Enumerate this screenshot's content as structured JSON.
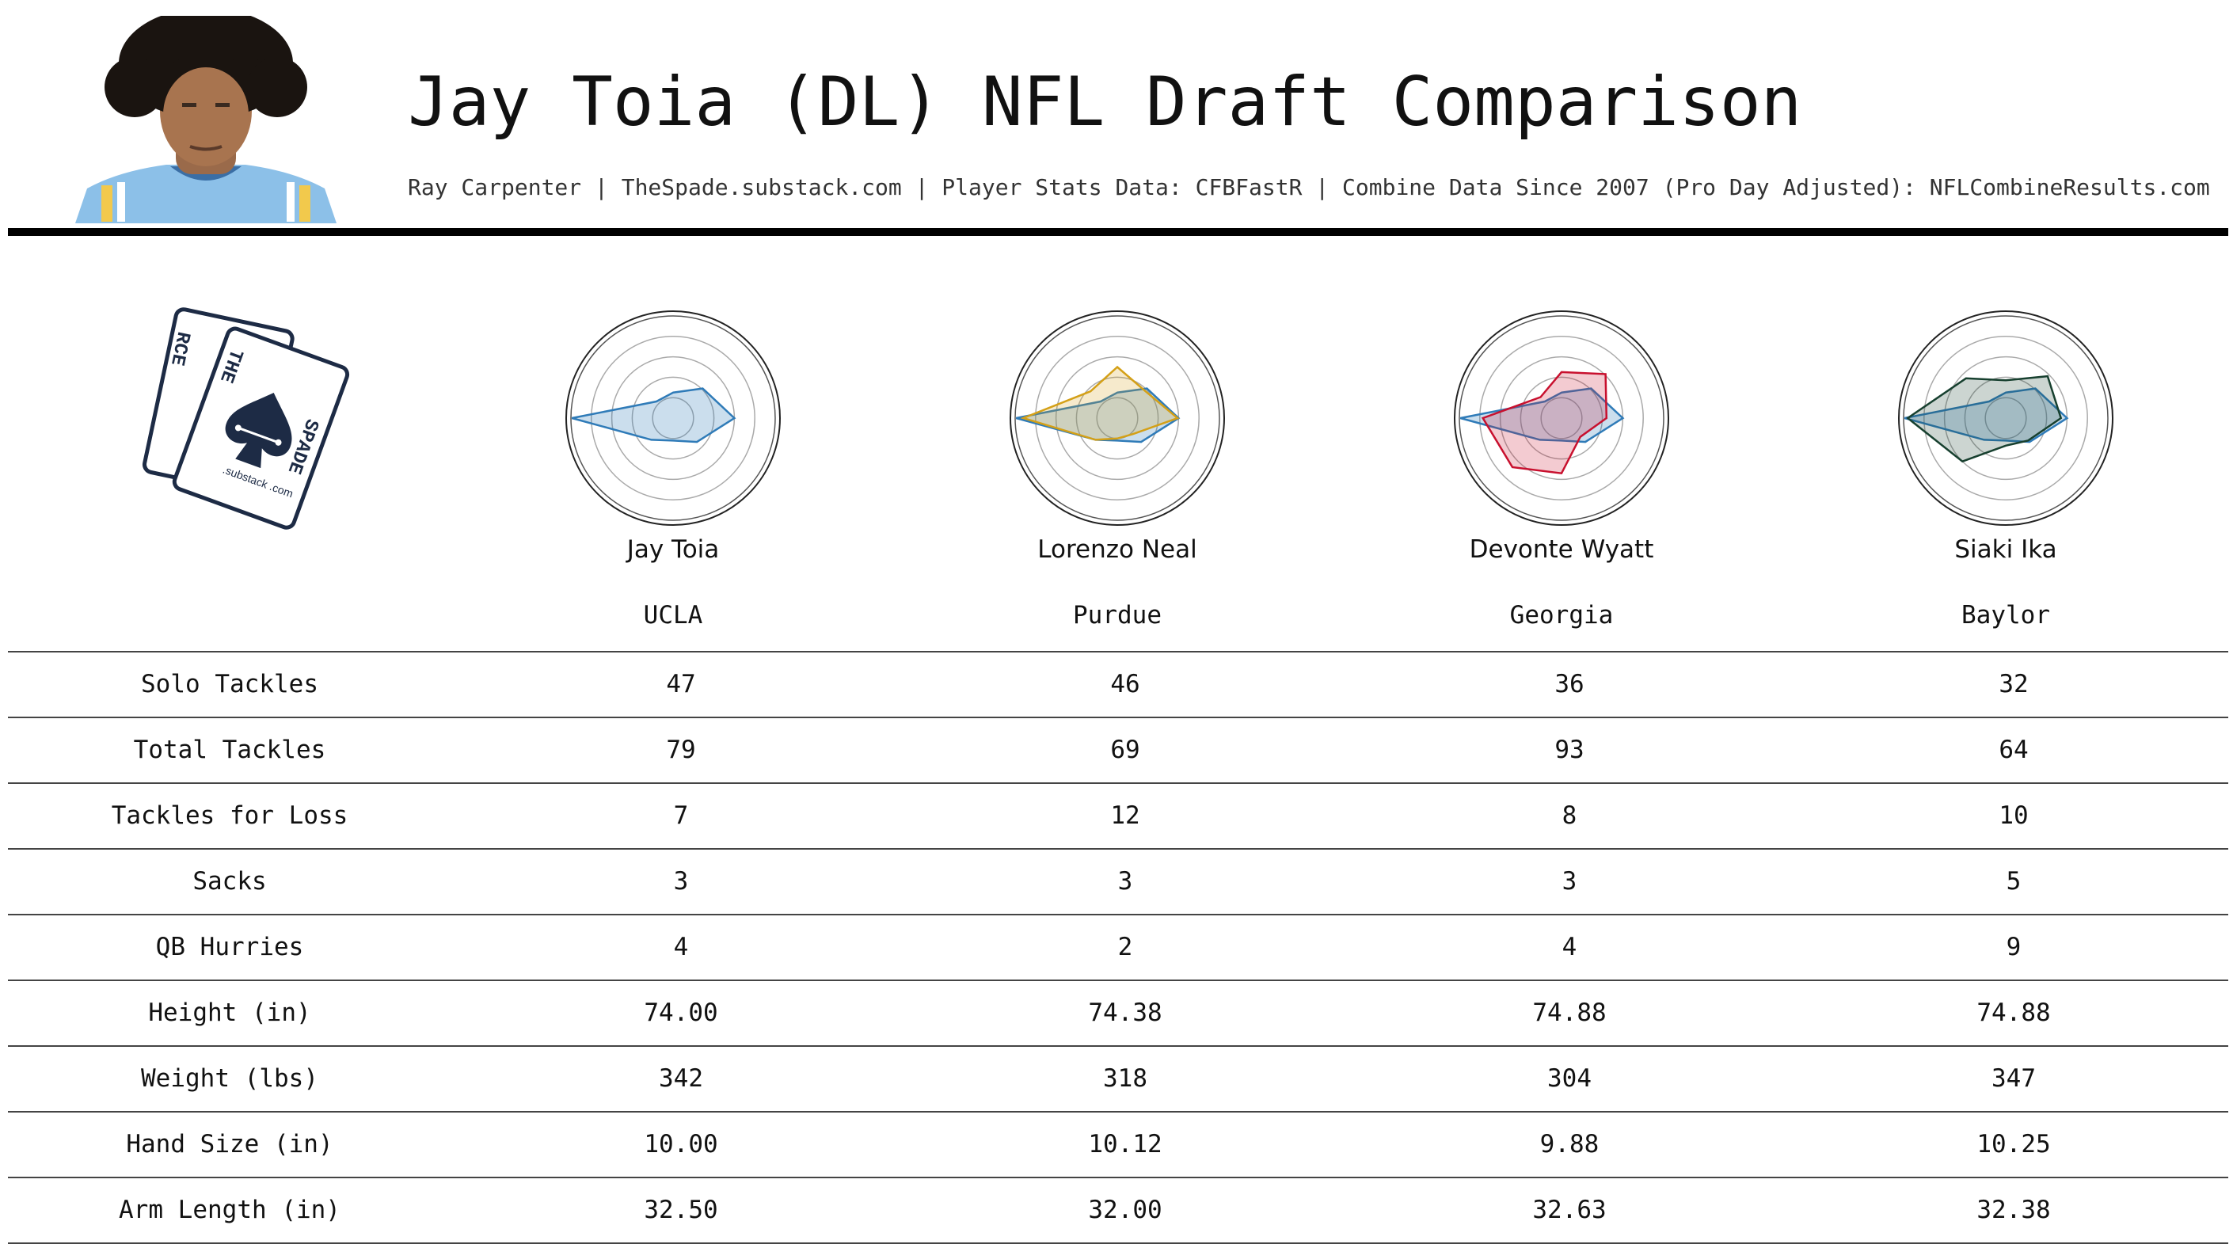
{
  "header": {
    "title": "Jay Toia (DL) NFL Draft Comparison",
    "subtitle": "Ray Carpenter | TheSpade.substack.com | Player Stats Data: CFBFastR | Combine Data Since 2007 (Pro Day Adjusted): NFLCombineResults.com"
  },
  "logo": {
    "card_back_letters": "RCE",
    "card_front_top": "THE",
    "card_front_side": "SPADE",
    "card_text": ".substack .com",
    "color": "#1d2b45"
  },
  "players": [
    {
      "name": "Jay Toia",
      "school": "UCLA"
    },
    {
      "name": "Lorenzo Neal",
      "school": "Purdue"
    },
    {
      "name": "Devonte Wyatt",
      "school": "Georgia"
    },
    {
      "name": "Siaki Ika",
      "school": "Baylor"
    }
  ],
  "colors": {
    "primary": "#2f7bb8",
    "primary_fill": "#9cc3e0",
    "comparisons": [
      "#d4a017",
      "#c8102e",
      "#17402f"
    ],
    "rule": "#000000",
    "grid": "#aaaaaa"
  },
  "chart_data": [
    {
      "type": "radar",
      "player": "Jay Toia",
      "series": [
        {
          "name": "Jay Toia",
          "color": "#2f7bb8",
          "values": [
            0.25,
            0.41,
            0.6,
            0.33,
            0.22,
            0.3,
            0.99,
            0.23
          ]
        }
      ]
    },
    {
      "type": "radar",
      "player": "Lorenzo Neal",
      "series": [
        {
          "name": "Jay Toia",
          "color": "#2f7bb8",
          "values": [
            0.25,
            0.41,
            0.6,
            0.33,
            0.22,
            0.3,
            0.99,
            0.23
          ]
        },
        {
          "name": "Lorenzo Neal",
          "color": "#d4a017",
          "values": [
            0.5,
            0.38,
            0.59,
            0.22,
            0.2,
            0.3,
            0.92,
            0.37
          ]
        }
      ]
    },
    {
      "type": "radar",
      "player": "Devonte Wyatt",
      "series": [
        {
          "name": "Jay Toia",
          "color": "#2f7bb8",
          "values": [
            0.25,
            0.41,
            0.6,
            0.33,
            0.22,
            0.3,
            0.99,
            0.23
          ]
        },
        {
          "name": "Devonte Wyatt",
          "color": "#c8102e",
          "values": [
            0.45,
            0.61,
            0.44,
            0.26,
            0.54,
            0.68,
            0.77,
            0.29
          ]
        }
      ]
    },
    {
      "type": "radar",
      "player": "Siaki Ika",
      "series": [
        {
          "name": "Jay Toia",
          "color": "#2f7bb8",
          "values": [
            0.25,
            0.41,
            0.6,
            0.33,
            0.22,
            0.3,
            0.99,
            0.23
          ]
        },
        {
          "name": "Siaki Ika",
          "color": "#17402f",
          "values": [
            0.37,
            0.58,
            0.54,
            0.31,
            0.27,
            0.6,
            0.96,
            0.55
          ]
        }
      ]
    }
  ],
  "table": {
    "rows": [
      {
        "label": "Solo Tackles",
        "values": [
          "47",
          "46",
          "36",
          "32"
        ]
      },
      {
        "label": "Total Tackles",
        "values": [
          "79",
          "69",
          "93",
          "64"
        ]
      },
      {
        "label": "Tackles for Loss",
        "values": [
          "7",
          "12",
          "8",
          "10"
        ]
      },
      {
        "label": "Sacks",
        "values": [
          "3",
          "3",
          "3",
          "5"
        ]
      },
      {
        "label": "QB Hurries",
        "values": [
          "4",
          "2",
          "4",
          "9"
        ]
      },
      {
        "label": "Height (in)",
        "values": [
          "74.00",
          "74.38",
          "74.88",
          "74.88"
        ]
      },
      {
        "label": "Weight (lbs)",
        "values": [
          "342",
          "318",
          "304",
          "347"
        ]
      },
      {
        "label": "Hand Size (in)",
        "values": [
          "10.00",
          "10.12",
          "9.88",
          "10.25"
        ]
      },
      {
        "label": "Arm Length (in)",
        "values": [
          "32.50",
          "32.00",
          "32.63",
          "32.38"
        ]
      }
    ]
  }
}
